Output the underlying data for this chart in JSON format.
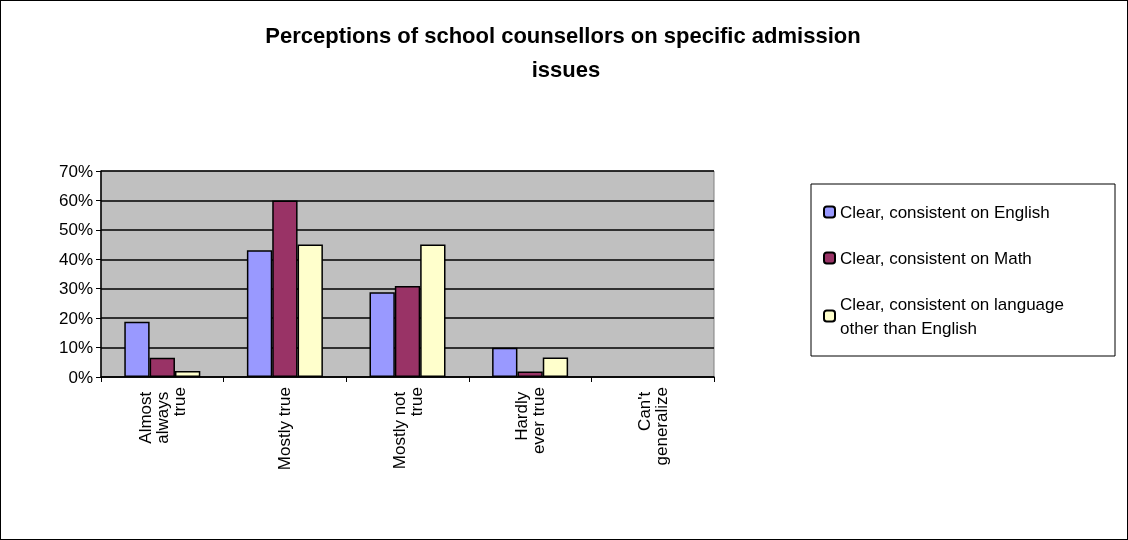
{
  "chart_data": {
    "type": "bar",
    "title": "Perceptions of school counsellors on specific admission issues",
    "categories": [
      "Almost always true",
      "Mostly true",
      "Mostly not true",
      "Hardly ever true",
      "Can't generalize"
    ],
    "series": [
      {
        "name": "Clear, consistent on English",
        "color": "#9999ff",
        "values": [
          18.8,
          43.1,
          28.8,
          9.9,
          0
        ]
      },
      {
        "name": "Clear, consistent on Math",
        "color": "#993366",
        "values": [
          6.5,
          60,
          30.9,
          1.9,
          0
        ]
      },
      {
        "name": "Clear, consistent on language other than English",
        "color": "#ffffcc",
        "values": [
          2,
          45,
          45,
          6.6,
          0
        ]
      }
    ],
    "ylim": [
      0,
      70
    ],
    "yticks": [
      {
        "value": 0,
        "label": "0%"
      },
      {
        "value": 10,
        "label": "10%"
      },
      {
        "value": 20,
        "label": "20%"
      },
      {
        "value": 30,
        "label": "30%"
      },
      {
        "value": 40,
        "label": "40%"
      },
      {
        "value": 50,
        "label": "50%"
      },
      {
        "value": 60,
        "label": "60%"
      },
      {
        "value": 70,
        "label": "70%"
      }
    ],
    "grid": "y",
    "legend": "right"
  }
}
